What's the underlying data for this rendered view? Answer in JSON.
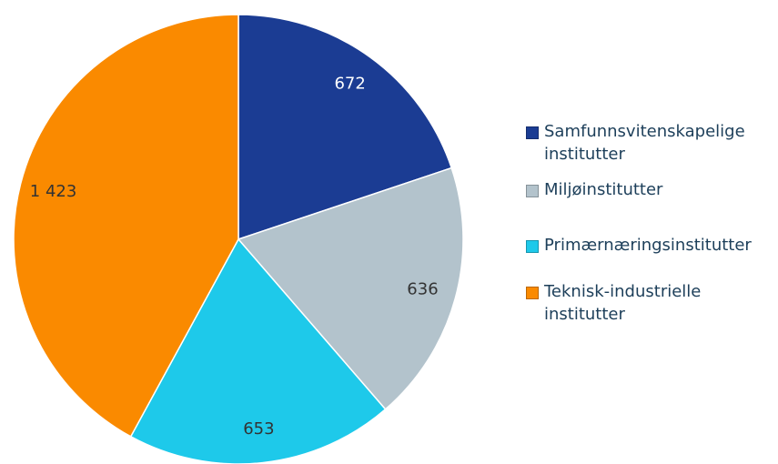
{
  "chart_data": {
    "type": "pie",
    "categories": [
      "Samfunnsvitenskapelige institutter",
      "Miljøinstitutter",
      "Primærnæringsinstitutter",
      "Teknisk-industrielle institutter"
    ],
    "values": [
      672,
      636,
      653,
      1423
    ],
    "value_labels": [
      "672",
      "636",
      "653",
      "1 423"
    ],
    "colors": [
      "#1b3c93",
      "#b3c3cc",
      "#1ec9ea",
      "#fa8a00"
    ],
    "legend": "right"
  }
}
